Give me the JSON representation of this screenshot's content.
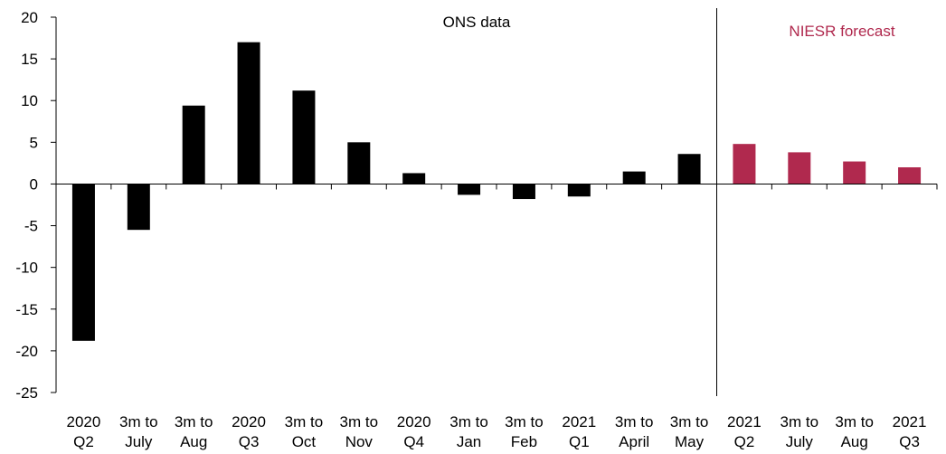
{
  "chart_data": {
    "type": "bar",
    "title": "",
    "xlabel": "",
    "ylabel": "",
    "ylim": [
      -25,
      20
    ],
    "yticks": [
      "20",
      "15",
      "10",
      "5",
      "0",
      "-5",
      "-10",
      "-15",
      "-20",
      "-25"
    ],
    "grid": false,
    "categories": [
      [
        "2020",
        "Q2"
      ],
      [
        "3m to",
        "July"
      ],
      [
        "3m to",
        "Aug"
      ],
      [
        "2020",
        "Q3"
      ],
      [
        "3m to",
        "Oct"
      ],
      [
        "3m to",
        "Nov"
      ],
      [
        "2020",
        "Q4"
      ],
      [
        "3m to",
        "Jan"
      ],
      [
        "3m to",
        "Feb"
      ],
      [
        "2021",
        "Q1"
      ],
      [
        "3m to",
        "April"
      ],
      [
        "3m to",
        "May"
      ],
      [
        "2021",
        "Q2"
      ],
      [
        "3m to",
        "July"
      ],
      [
        "3m to",
        "Aug"
      ],
      [
        "2021",
        "Q3"
      ]
    ],
    "values": [
      -18.8,
      -5.5,
      9.4,
      17.0,
      11.2,
      5.0,
      1.3,
      -1.3,
      -1.8,
      -1.5,
      1.5,
      3.6,
      4.8,
      3.8,
      2.7,
      2.0
    ],
    "series_kind": [
      "ons",
      "ons",
      "ons",
      "ons",
      "ons",
      "ons",
      "ons",
      "ons",
      "ons",
      "ons",
      "ons",
      "ons",
      "forecast",
      "forecast",
      "forecast",
      "forecast"
    ],
    "annotations": {
      "ons": "ONS data",
      "forecast": "NIESR forecast"
    },
    "colors": {
      "ons": "#000000",
      "forecast": "#b0294e",
      "axis": "#000000"
    }
  }
}
